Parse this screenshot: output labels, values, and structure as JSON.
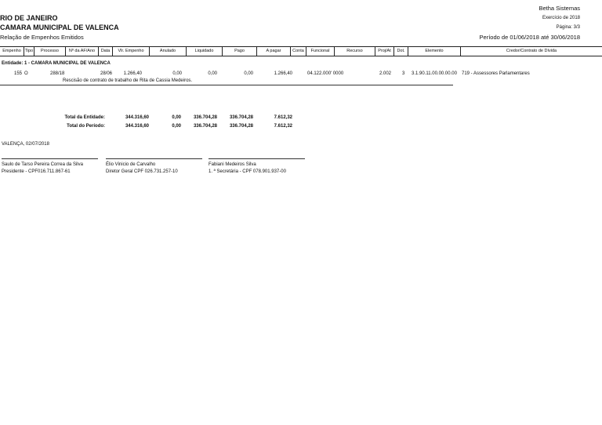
{
  "header": {
    "system": "Betha Sistemas",
    "state": "RIO DE JANEIRO",
    "entity": "CAMARA MUNICIPAL DE VALENCA",
    "exercise": "Exercício de 2018",
    "report": "Relação de Empenhos Emitidos",
    "page": "Página: 3/3",
    "period": "Período de 01/06/2018 até 30/06/2018"
  },
  "columns": [
    "Empenho",
    "Tipo",
    "Processo",
    "Nº da AF/Ano",
    "Data",
    "Vlr. Empenho",
    "Anulado",
    "Liquidado",
    "Pago",
    "A pagar",
    "Conta",
    "Funcional",
    "Recurso",
    "Proj/At",
    "Dot.",
    "Elemento",
    "Credor/Contrato de Dívida"
  ],
  "entity_label": "Entidade: 1 - CAMARA MUNICIPAL DE VALENCA",
  "row": {
    "empenho": "155",
    "tipo": "O",
    "processo": "288/18",
    "data": "28/06",
    "valor": "1.266,40",
    "anulado": "0,00",
    "liquidado": "0,00",
    "pago": "0,00",
    "apagar": "1.266,40",
    "funcional": "04.122.000' 0000",
    "projat": "2.002",
    "dot": "3",
    "elemento": "3.1.90.11.00.00.00.00",
    "credor": "719 - Assessores Parlamentares",
    "descricao": "Rescisão de contrato de trabalho de Rita de Cassia Medeiros."
  },
  "totals": [
    {
      "label": "Total da Entidade:",
      "valor": "344.316,60",
      "anulado": "0,00",
      "liquidado": "336.704,28",
      "pago": "336.704,28",
      "apagar": "7.612,32"
    },
    {
      "label": "Total do Período:",
      "valor": "344.316,60",
      "anulado": "0,00",
      "liquidado": "336.704,28",
      "pago": "336.704,28",
      "apagar": "7.612,32"
    }
  ],
  "place_date": "VALENÇA, 02/07/2018",
  "signatures": [
    {
      "name": "Saulo de Tarso Pereira Correa da Silva",
      "role": "Presidente - CPF016.711.867-61"
    },
    {
      "name": "Élio Vinicio de Carvalho",
      "role": "Diretor Geral  CPF 026.731.257-10"
    },
    {
      "name": "Fabiani Medeiros Silva",
      "role": "1. ª Secretária - CPF 078.901.937-00"
    }
  ]
}
